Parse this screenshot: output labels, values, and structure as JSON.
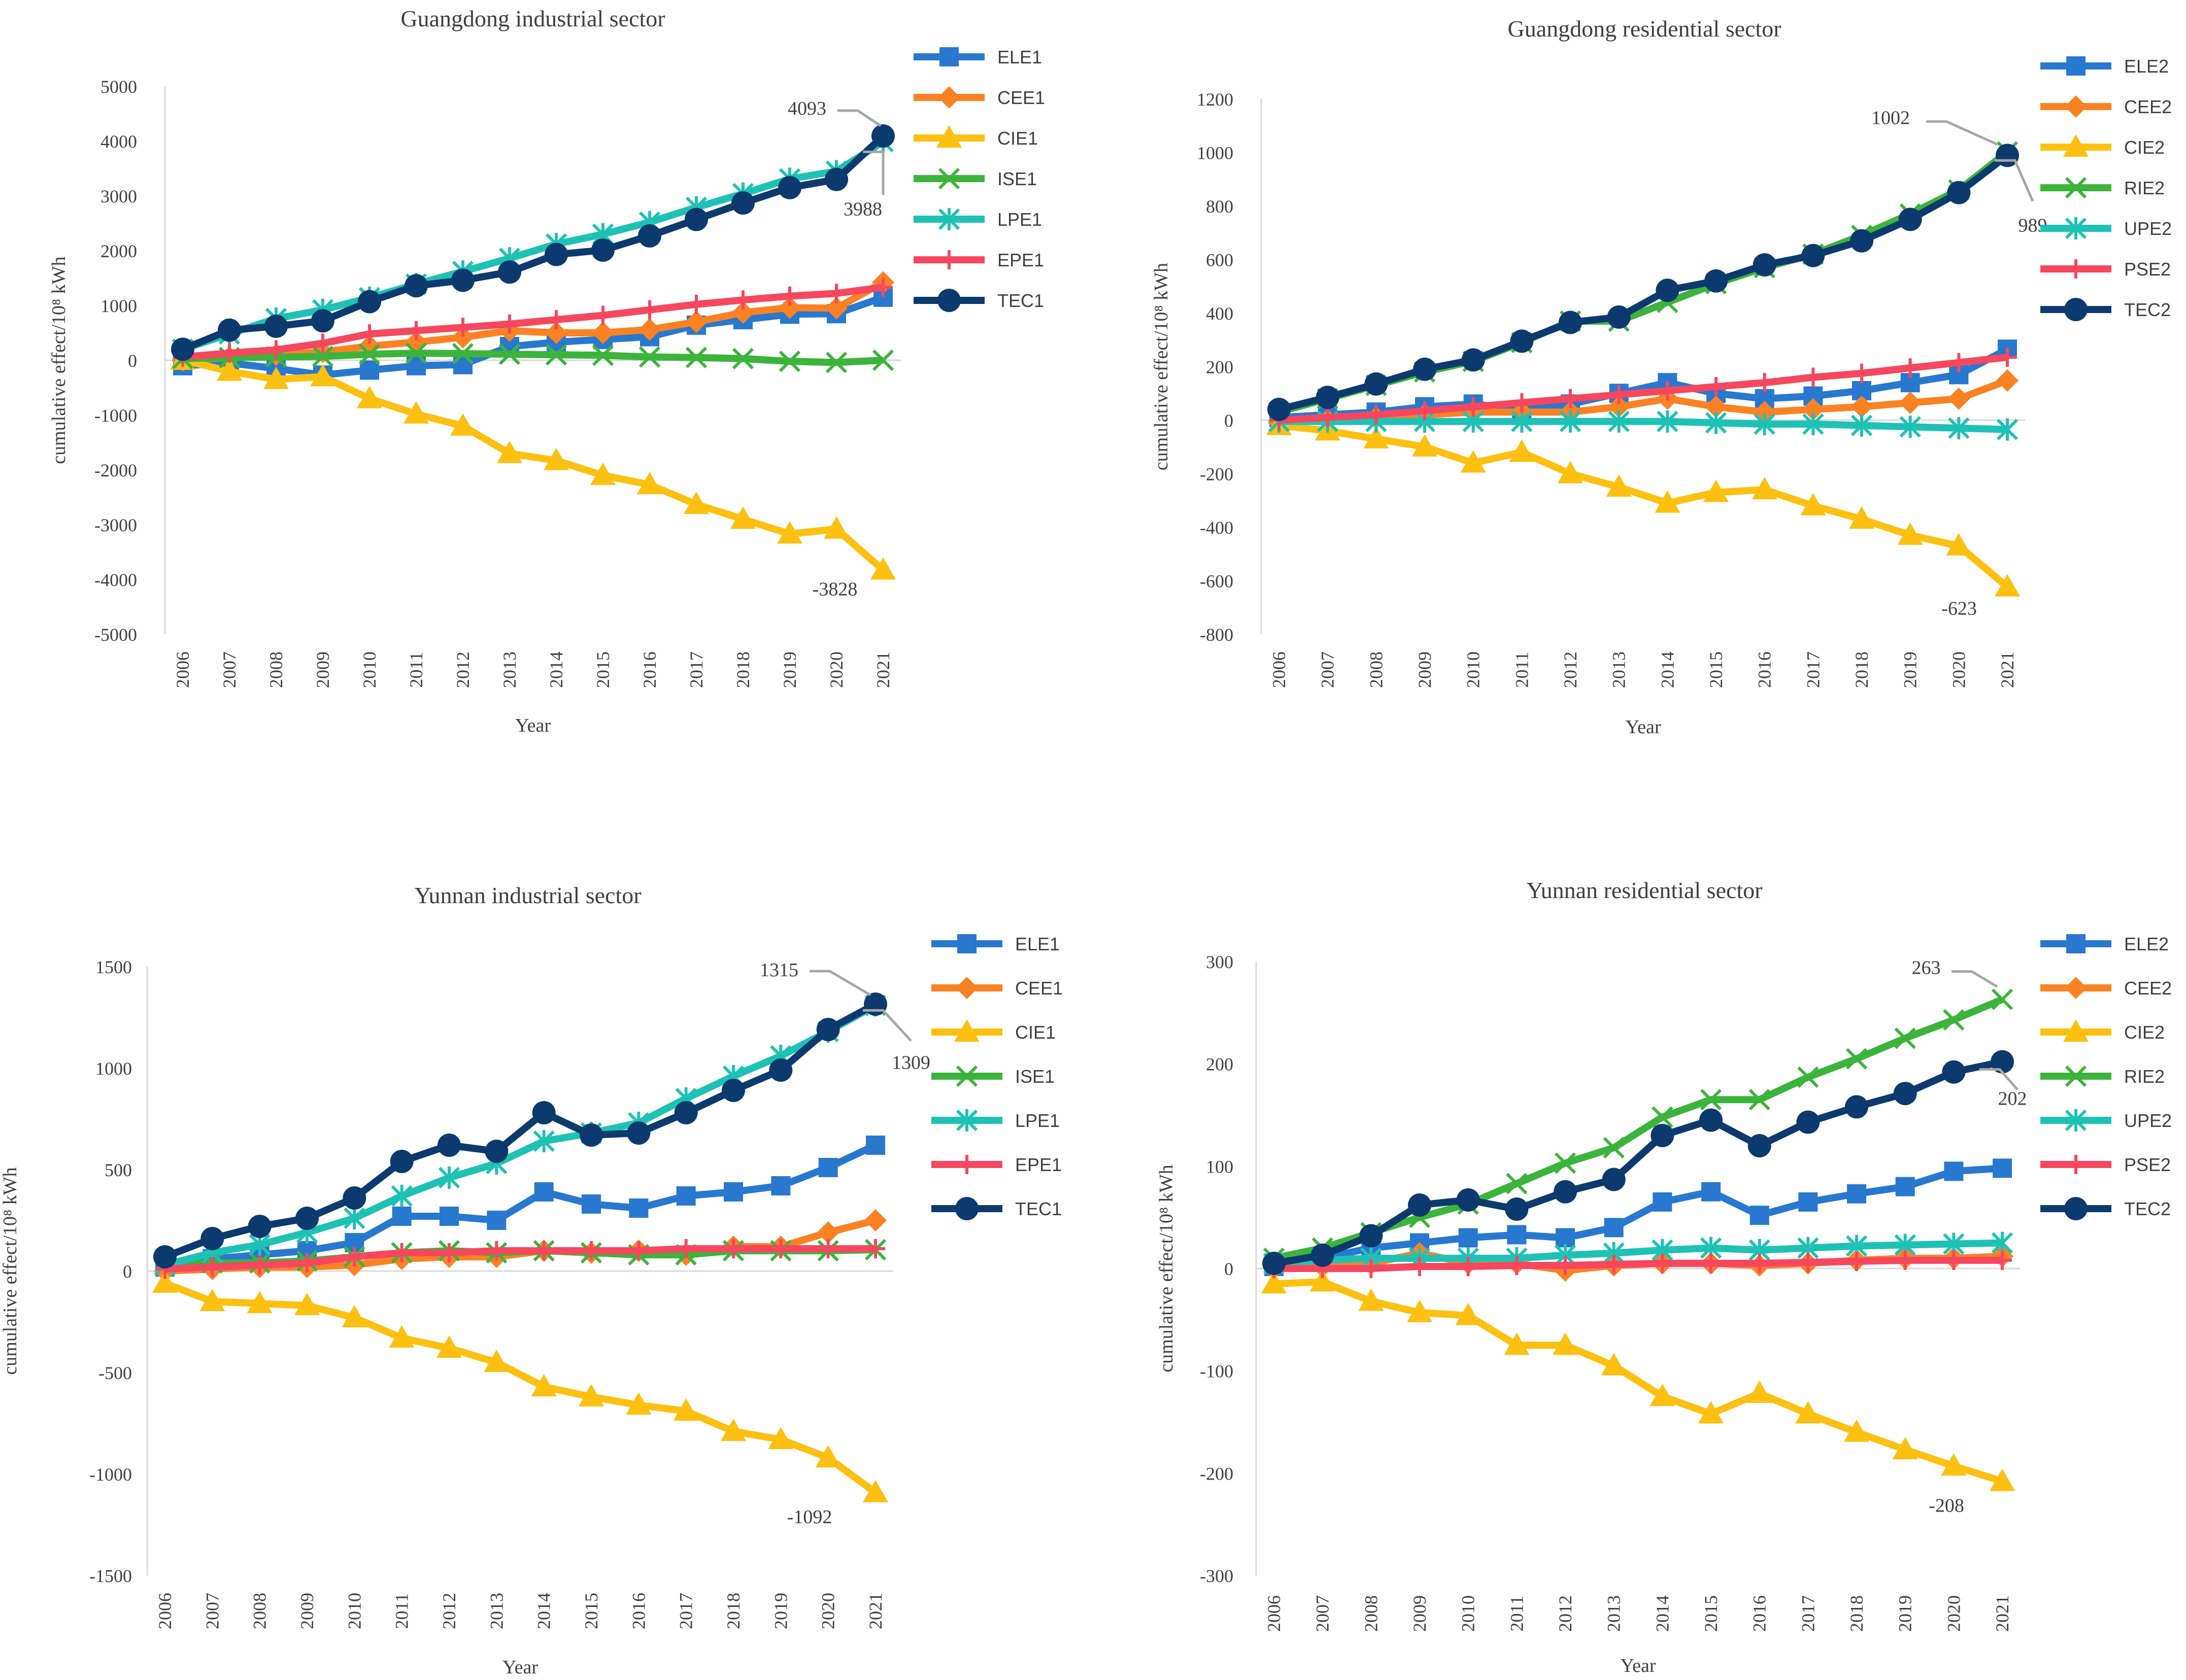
{
  "colors": {
    "ELE": "#2878D0",
    "CEE": "#FB8223",
    "CIE": "#FDC010",
    "ISE": "#3CB43C",
    "LPE": "#1EC2B5",
    "EPE": "#F6475E",
    "TEC": "#0C3A6E",
    "axis": "#d9d9d9",
    "text": "#404040"
  },
  "chart_data": [
    {
      "type": "line",
      "title": "Guangdong industrial sector",
      "xlabel": "Year",
      "ylabel": "cumulative effect/10⁸ kWh",
      "ylim": [
        -5000,
        5000
      ],
      "yticks": [
        5000,
        4000,
        3000,
        2000,
        1000,
        0,
        -1000,
        -2000,
        -3000,
        -4000,
        -5000
      ],
      "categories": [
        "2006",
        "2007",
        "2008",
        "2009",
        "2010",
        "2011",
        "2012",
        "2013",
        "2014",
        "2015",
        "2016",
        "2017",
        "2018",
        "2019",
        "2020",
        "2021"
      ],
      "legend_position": "right",
      "series": [
        {
          "name": "ELE1",
          "key": "ELE",
          "marker": "square",
          "values": [
            -100,
            -50,
            -150,
            -270,
            -180,
            -100,
            -80,
            250,
            330,
            380,
            430,
            640,
            740,
            840,
            850,
            1150
          ]
        },
        {
          "name": "CEE1",
          "key": "CEE",
          "marker": "diamond",
          "values": [
            0,
            50,
            100,
            150,
            260,
            330,
            420,
            540,
            500,
            500,
            560,
            700,
            870,
            960,
            950,
            1420
          ]
        },
        {
          "name": "CIE1",
          "key": "CIE",
          "marker": "triangle",
          "values": [
            0,
            -200,
            -350,
            -300,
            -700,
            -980,
            -1200,
            -1700,
            -1830,
            -2100,
            -2270,
            -2630,
            -2900,
            -3170,
            -3080,
            -3828
          ]
        },
        {
          "name": "ISE1",
          "key": "ISE",
          "marker": "x",
          "values": [
            30,
            50,
            60,
            70,
            110,
            130,
            120,
            110,
            100,
            90,
            60,
            50,
            30,
            -20,
            -40,
            0
          ]
        },
        {
          "name": "LPE1",
          "key": "LPE",
          "marker": "asterisk",
          "values": [
            200,
            480,
            760,
            920,
            1140,
            1390,
            1620,
            1860,
            2120,
            2300,
            2520,
            2790,
            3040,
            3310,
            3450,
            3988
          ]
        },
        {
          "name": "EPE1",
          "key": "EPE",
          "marker": "plus",
          "values": [
            60,
            130,
            190,
            310,
            480,
            540,
            600,
            660,
            740,
            820,
            920,
            1020,
            1100,
            1170,
            1220,
            1330
          ]
        },
        {
          "name": "TEC1",
          "key": "TEC",
          "marker": "circle",
          "values": [
            200,
            550,
            620,
            720,
            1070,
            1360,
            1460,
            1610,
            1930,
            2010,
            2270,
            2570,
            2870,
            3150,
            3300,
            4093
          ]
        }
      ],
      "annotations": [
        {
          "text": "4093",
          "series": "TEC1"
        },
        {
          "text": "3988",
          "series": "LPE1"
        },
        {
          "text": "-3828",
          "series": "CIE1"
        }
      ]
    },
    {
      "type": "line",
      "title": "Guangdong residential sector",
      "xlabel": "Year",
      "ylabel": "cumulative effect/10⁸ kWh",
      "ylim": [
        -800,
        1200
      ],
      "yticks": [
        1200,
        1000,
        800,
        600,
        400,
        200,
        0,
        -200,
        -400,
        -600,
        -800
      ],
      "categories": [
        "2006",
        "2007",
        "2008",
        "2009",
        "2010",
        "2011",
        "2012",
        "2013",
        "2014",
        "2015",
        "2016",
        "2017",
        "2018",
        "2019",
        "2020",
        "2021"
      ],
      "legend_position": "right",
      "series": [
        {
          "name": "ELE2",
          "key": "ELE",
          "marker": "square",
          "values": [
            10,
            20,
            30,
            50,
            60,
            40,
            60,
            100,
            140,
            100,
            80,
            90,
            110,
            140,
            170,
            265
          ]
        },
        {
          "name": "CEE2",
          "key": "CEE",
          "marker": "diamond",
          "values": [
            -10,
            0,
            10,
            20,
            30,
            30,
            30,
            50,
            80,
            50,
            30,
            40,
            50,
            65,
            80,
            148
          ]
        },
        {
          "name": "CIE2",
          "key": "CIE",
          "marker": "triangle",
          "values": [
            -20,
            -40,
            -70,
            -100,
            -160,
            -120,
            -200,
            -250,
            -310,
            -270,
            -260,
            -320,
            -370,
            -430,
            -470,
            -623
          ]
        },
        {
          "name": "RIE2",
          "key": "ISE",
          "marker": "x",
          "values": [
            30,
            80,
            130,
            180,
            220,
            290,
            370,
            370,
            440,
            510,
            570,
            620,
            690,
            770,
            860,
            1002
          ]
        },
        {
          "name": "UPE2",
          "key": "LPE",
          "marker": "asterisk",
          "values": [
            -5,
            -5,
            -5,
            -5,
            -5,
            -5,
            -5,
            -5,
            -5,
            -10,
            -15,
            -15,
            -20,
            -25,
            -30,
            -35
          ]
        },
        {
          "name": "PSE2",
          "key": "EPE",
          "marker": "plus",
          "values": [
            0,
            10,
            20,
            35,
            50,
            65,
            80,
            95,
            110,
            125,
            140,
            160,
            175,
            195,
            215,
            235
          ]
        },
        {
          "name": "TEC2",
          "key": "TEC",
          "marker": "circle",
          "values": [
            40,
            85,
            135,
            190,
            225,
            295,
            365,
            385,
            485,
            520,
            580,
            615,
            670,
            750,
            850,
            989
          ]
        }
      ],
      "annotations": [
        {
          "text": "1002",
          "series": "RIE2"
        },
        {
          "text": "989",
          "series": "TEC2"
        },
        {
          "text": "-623",
          "series": "CIE2"
        }
      ]
    },
    {
      "type": "line",
      "title": "Yunnan industrial sector",
      "xlabel": "Year",
      "ylabel": "cumulative effect/10⁸ kWh",
      "ylim": [
        -1500,
        1500
      ],
      "yticks": [
        1500,
        1000,
        500,
        0,
        -500,
        -1000,
        -1500
      ],
      "categories": [
        "2006",
        "2007",
        "2008",
        "2009",
        "2010",
        "2011",
        "2012",
        "2013",
        "2014",
        "2015",
        "2016",
        "2017",
        "2018",
        "2019",
        "2020",
        "2021"
      ],
      "legend_position": "right",
      "series": [
        {
          "name": "ELE1",
          "key": "ELE",
          "marker": "square",
          "values": [
            20,
            60,
            80,
            100,
            140,
            270,
            270,
            250,
            390,
            330,
            310,
            370,
            390,
            420,
            510,
            620
          ]
        },
        {
          "name": "CEE1",
          "key": "CEE",
          "marker": "diamond",
          "values": [
            0,
            10,
            20,
            20,
            30,
            60,
            70,
            70,
            100,
            90,
            100,
            80,
            120,
            120,
            190,
            250
          ]
        },
        {
          "name": "CIE1",
          "key": "CIE",
          "marker": "triangle",
          "values": [
            -60,
            -150,
            -160,
            -170,
            -230,
            -330,
            -380,
            -450,
            -570,
            -620,
            -660,
            -690,
            -790,
            -830,
            -920,
            -1092
          ]
        },
        {
          "name": "ISE1",
          "key": "ISE",
          "marker": "x",
          "values": [
            30,
            40,
            40,
            50,
            70,
            90,
            100,
            90,
            100,
            90,
            80,
            80,
            100,
            100,
            100,
            105
          ]
        },
        {
          "name": "LPE1",
          "key": "LPE",
          "marker": "asterisk",
          "values": [
            30,
            90,
            130,
            190,
            260,
            370,
            460,
            530,
            640,
            680,
            730,
            850,
            960,
            1060,
            1180,
            1309
          ]
        },
        {
          "name": "EPE1",
          "key": "EPE",
          "marker": "plus",
          "values": [
            10,
            20,
            30,
            40,
            70,
            90,
            90,
            100,
            100,
            100,
            100,
            110,
            110,
            110,
            110,
            110
          ]
        },
        {
          "name": "TEC1",
          "key": "TEC",
          "marker": "circle",
          "values": [
            70,
            160,
            220,
            260,
            360,
            540,
            620,
            590,
            780,
            670,
            680,
            780,
            890,
            990,
            1190,
            1315
          ]
        }
      ],
      "annotations": [
        {
          "text": "1315",
          "series": "TEC1"
        },
        {
          "text": "1309",
          "series": "LPE1"
        },
        {
          "text": "-1092",
          "series": "CIE1"
        }
      ]
    },
    {
      "type": "line",
      "title": "Yunnan residential sector",
      "xlabel": "Year",
      "ylabel": "cumulative effect/10⁸ kWh",
      "ylim": [
        -300,
        300
      ],
      "yticks": [
        300,
        200,
        100,
        0,
        -100,
        -200,
        -300
      ],
      "categories": [
        "2006",
        "2007",
        "2008",
        "2009",
        "2010",
        "2011",
        "2012",
        "2013",
        "2014",
        "2015",
        "2016",
        "2017",
        "2018",
        "2019",
        "2020",
        "2021"
      ],
      "legend_position": "right",
      "series": [
        {
          "name": "ELE2",
          "key": "ELE",
          "marker": "square",
          "values": [
            2,
            10,
            20,
            25,
            30,
            33,
            30,
            40,
            65,
            75,
            52,
            65,
            73,
            80,
            95,
            98
          ]
        },
        {
          "name": "CEE2",
          "key": "CEE",
          "marker": "diamond",
          "values": [
            0,
            2,
            5,
            15,
            5,
            5,
            -2,
            3,
            5,
            5,
            3,
            5,
            8,
            10,
            10,
            12
          ]
        },
        {
          "name": "CIE2",
          "key": "CIE",
          "marker": "triangle",
          "values": [
            -15,
            -13,
            -32,
            -43,
            -46,
            -75,
            -75,
            -95,
            -125,
            -142,
            -122,
            -142,
            -160,
            -177,
            -193,
            -208
          ]
        },
        {
          "name": "RIE2",
          "key": "ISE",
          "marker": "x",
          "values": [
            10,
            20,
            35,
            50,
            63,
            83,
            103,
            118,
            148,
            165,
            165,
            187,
            205,
            225,
            243,
            263
          ]
        },
        {
          "name": "UPE2",
          "key": "LPE",
          "marker": "asterisk",
          "values": [
            5,
            8,
            10,
            10,
            10,
            10,
            13,
            15,
            18,
            20,
            18,
            20,
            22,
            23,
            24,
            25
          ]
        },
        {
          "name": "PSE2",
          "key": "EPE",
          "marker": "plus",
          "values": [
            0,
            0,
            0,
            2,
            2,
            3,
            3,
            4,
            5,
            5,
            5,
            6,
            7,
            8,
            8,
            8
          ]
        },
        {
          "name": "TEC2",
          "key": "TEC",
          "marker": "circle",
          "values": [
            5,
            13,
            32,
            62,
            67,
            58,
            75,
            87,
            130,
            145,
            120,
            143,
            158,
            171,
            192,
            202
          ]
        }
      ],
      "annotations": [
        {
          "text": "263",
          "series": "RIE2"
        },
        {
          "text": "202",
          "series": "TEC2"
        },
        {
          "text": "-208",
          "series": "CIE2"
        }
      ]
    }
  ]
}
